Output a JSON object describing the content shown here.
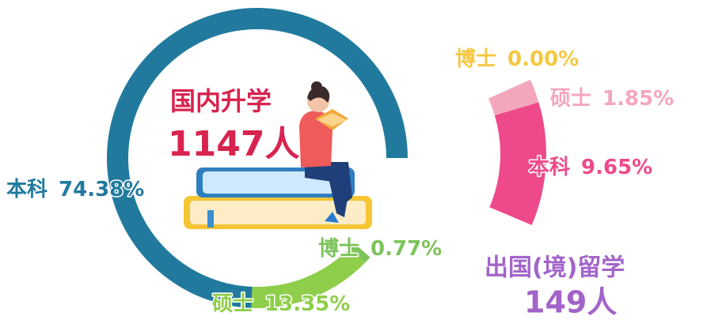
{
  "chart_data": [
    {
      "type": "donut",
      "title": "国内升学",
      "subtitle": "1147人",
      "categories": [
        "本科",
        "硕士",
        "博士"
      ],
      "values": [
        74.38,
        13.35,
        0.77
      ],
      "value_labels": [
        "74.38%",
        "13.35%",
        "0.77%"
      ],
      "colors": [
        "#217a9e",
        "#8fce4a",
        "#7cc35a"
      ]
    },
    {
      "type": "donut",
      "title": "出国(境)留学",
      "subtitle": "149人",
      "categories": [
        "博士",
        "硕士",
        "本科"
      ],
      "values": [
        0.0,
        1.85,
        9.65
      ],
      "value_labels": [
        "0.00%",
        "1.85%",
        "9.65%"
      ],
      "colors": [
        "#f5c842",
        "#f4a6bd",
        "#ee4a8b"
      ]
    }
  ]
}
